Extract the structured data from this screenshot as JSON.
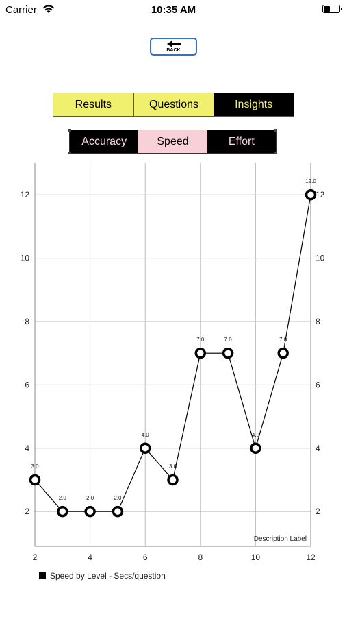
{
  "status_bar": {
    "carrier": "Carrier",
    "time": "10:35 AM"
  },
  "back_button": {
    "label": "BACK"
  },
  "main_tabs": [
    {
      "label": "Results",
      "selected": false
    },
    {
      "label": "Questions",
      "selected": false
    },
    {
      "label": "Insights",
      "selected": true
    }
  ],
  "sub_tabs": [
    {
      "label": "Accuracy",
      "selected": false
    },
    {
      "label": "Speed",
      "selected": true
    },
    {
      "label": "Effort",
      "selected": false
    }
  ],
  "colors": {
    "tab_yellow": "#f0ef6e",
    "tab_dark": "#000000",
    "sub_selected": "#f8d0d8",
    "back_border": "#2f6fd6"
  },
  "chart_data": {
    "type": "line",
    "x": [
      2,
      3,
      4,
      5,
      6,
      7,
      8,
      9,
      10,
      11,
      12
    ],
    "series": [
      {
        "name": "Speed by Level - Secs/question",
        "values": [
          3,
          2,
          2,
          2,
          4,
          3,
          7,
          7,
          4,
          7,
          12
        ]
      }
    ],
    "point_labels": [
      "3.0",
      "2.0",
      "2.0",
      "2.0",
      "4.0",
      "3.0",
      "7.0",
      "7.0",
      "4.0",
      "7.0",
      "12.0"
    ],
    "x_ticks": [
      2,
      4,
      6,
      8,
      10,
      12
    ],
    "y_ticks": [
      2,
      4,
      6,
      8,
      10,
      12
    ],
    "xlim": [
      2,
      12
    ],
    "ylim": [
      0.9,
      13
    ],
    "grid": true,
    "description_label": "Description Label",
    "legend_placement": "bottom-left"
  }
}
